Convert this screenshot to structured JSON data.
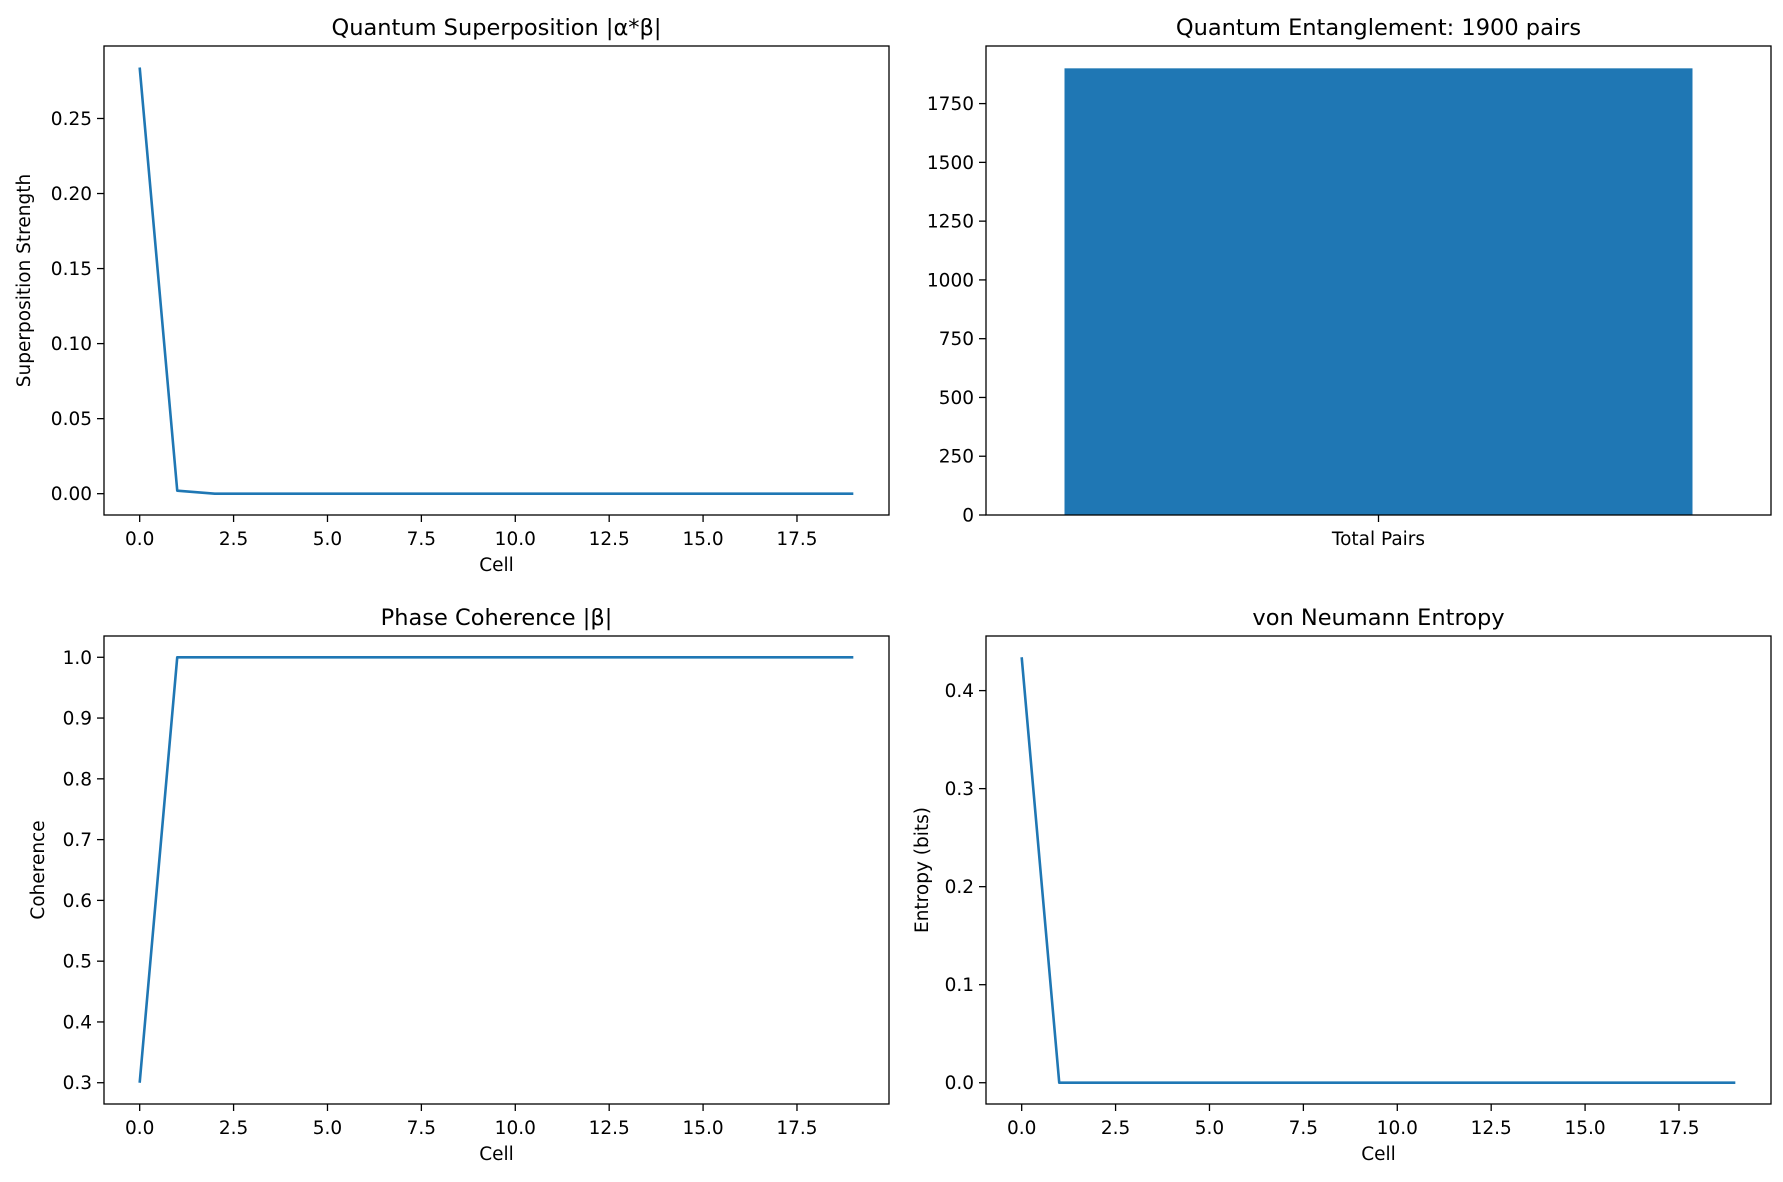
{
  "colors": {
    "series": "#1f77b4",
    "axes": "#000000",
    "background": "#ffffff"
  },
  "chart_data": [
    {
      "type": "line",
      "title": "Quantum Superposition |α*β|",
      "xlabel": "Cell",
      "ylabel": "Superposition Strength",
      "xlim": [
        -0.95,
        19.95
      ],
      "ylim": [
        -0.0142,
        0.2983
      ],
      "xticks": [
        0,
        2.5,
        5,
        7.5,
        10,
        12.5,
        15,
        17.5
      ],
      "xtick_labels": [
        "0.0",
        "2.5",
        "5.0",
        "7.5",
        "10.0",
        "12.5",
        "15.0",
        "17.5"
      ],
      "yticks": [
        0,
        0.05,
        0.1,
        0.15,
        0.2,
        0.25
      ],
      "ytick_labels": [
        "0.00",
        "0.05",
        "0.10",
        "0.15",
        "0.20",
        "0.25"
      ],
      "grid": false,
      "series": [
        {
          "x": [
            0,
            1,
            2,
            3,
            4,
            5,
            6,
            7,
            8,
            9,
            10,
            11,
            12,
            13,
            14,
            15,
            16,
            17,
            18,
            19
          ],
          "y": [
            0.284,
            0.002,
            0,
            0,
            0,
            0,
            0,
            0,
            0,
            0,
            0,
            0,
            0,
            0,
            0,
            0,
            0,
            0,
            0,
            0
          ]
        }
      ]
    },
    {
      "type": "bar",
      "title": "Quantum Entanglement: 1900 pairs",
      "xlabel": "",
      "ylabel": "",
      "categories": [
        "Total Pairs"
      ],
      "values": [
        1900
      ],
      "xlim": [
        -0.5,
        0.5
      ],
      "ylim": [
        0,
        1995
      ],
      "yticks": [
        0,
        250,
        500,
        750,
        1000,
        1250,
        1500,
        1750
      ],
      "ytick_labels": [
        "0",
        "250",
        "500",
        "750",
        "1000",
        "1250",
        "1500",
        "1750"
      ],
      "bar_width": 0.8,
      "grid": false
    },
    {
      "type": "line",
      "title": "Phase Coherence |β|",
      "xlabel": "Cell",
      "ylabel": "Coherence",
      "xlim": [
        -0.95,
        19.95
      ],
      "ylim": [
        0.265,
        1.035
      ],
      "xticks": [
        0,
        2.5,
        5,
        7.5,
        10,
        12.5,
        15,
        17.5
      ],
      "xtick_labels": [
        "0.0",
        "2.5",
        "5.0",
        "7.5",
        "10.0",
        "12.5",
        "15.0",
        "17.5"
      ],
      "yticks": [
        0.3,
        0.4,
        0.5,
        0.6,
        0.7,
        0.8,
        0.9,
        1.0
      ],
      "ytick_labels": [
        "0.3",
        "0.4",
        "0.5",
        "0.6",
        "0.7",
        "0.8",
        "0.9",
        "1.0"
      ],
      "grid": false,
      "series": [
        {
          "x": [
            0,
            1,
            2,
            3,
            4,
            5,
            6,
            7,
            8,
            9,
            10,
            11,
            12,
            13,
            14,
            15,
            16,
            17,
            18,
            19
          ],
          "y": [
            0.3,
            1,
            1,
            1,
            1,
            1,
            1,
            1,
            1,
            1,
            1,
            1,
            1,
            1,
            1,
            1,
            1,
            1,
            1,
            1
          ]
        }
      ]
    },
    {
      "type": "line",
      "title": "von Neumann Entropy",
      "xlabel": "Cell",
      "ylabel": "Entropy (bits)",
      "xlim": [
        -0.95,
        19.95
      ],
      "ylim": [
        -0.0217,
        0.4557
      ],
      "xticks": [
        0,
        2.5,
        5,
        7.5,
        10,
        12.5,
        15,
        17.5
      ],
      "xtick_labels": [
        "0.0",
        "2.5",
        "5.0",
        "7.5",
        "10.0",
        "12.5",
        "15.0",
        "17.5"
      ],
      "yticks": [
        0,
        0.1,
        0.2,
        0.3,
        0.4
      ],
      "ytick_labels": [
        "0.0",
        "0.1",
        "0.2",
        "0.3",
        "0.4"
      ],
      "grid": false,
      "series": [
        {
          "x": [
            0,
            1,
            2,
            3,
            4,
            5,
            6,
            7,
            8,
            9,
            10,
            11,
            12,
            13,
            14,
            15,
            16,
            17,
            18,
            19
          ],
          "y": [
            0.434,
            0,
            0,
            0,
            0,
            0,
            0,
            0,
            0,
            0,
            0,
            0,
            0,
            0,
            0,
            0,
            0,
            0,
            0,
            0
          ]
        }
      ]
    }
  ]
}
